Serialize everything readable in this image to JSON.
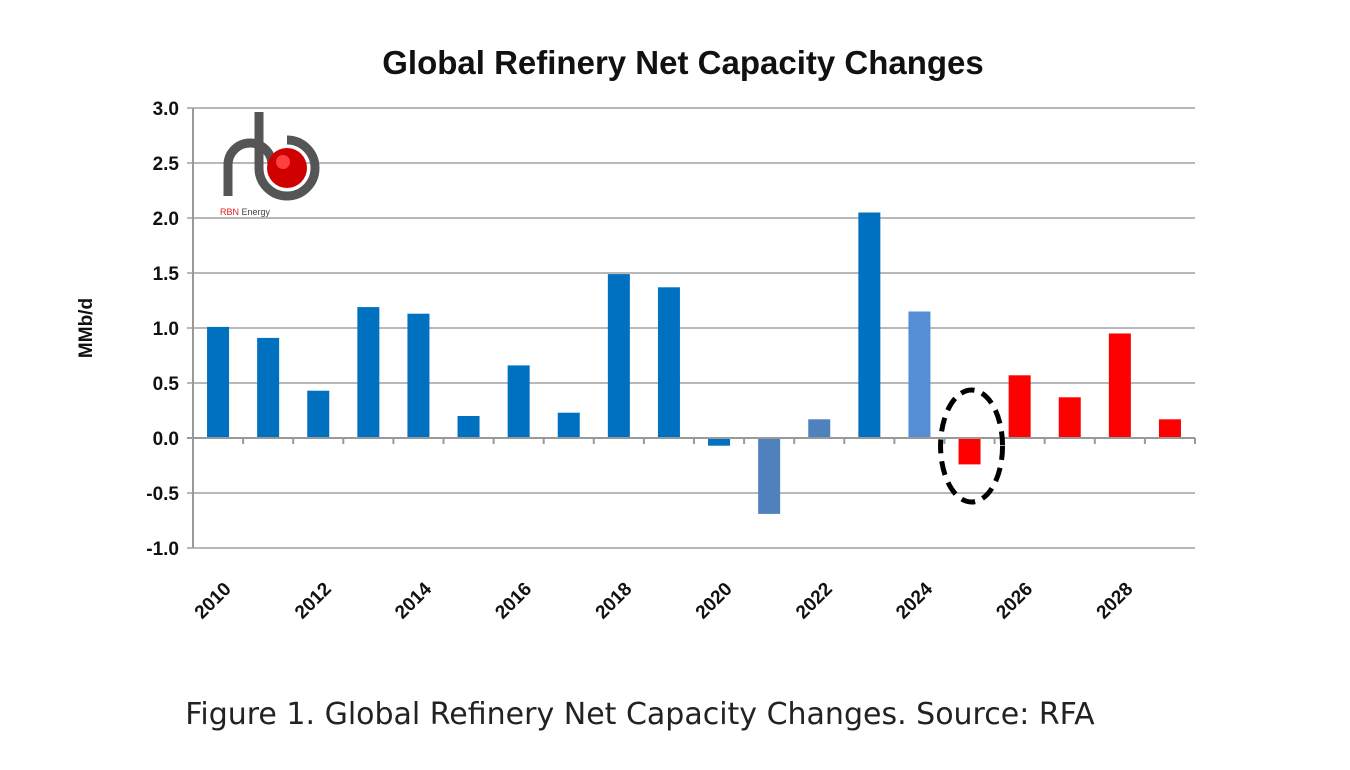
{
  "chart_data": {
    "type": "bar",
    "title": "Global Refinery Net Capacity Changes",
    "xlabel": "",
    "ylabel": "MMb/d",
    "ylim": [
      -1.0,
      3.0
    ],
    "yticks": [
      "3.0",
      "2.5",
      "2.0",
      "1.5",
      "1.0",
      "0.5",
      "0.0",
      "-0.5",
      "-1.0"
    ],
    "ytick_values": [
      3.0,
      2.5,
      2.0,
      1.5,
      1.0,
      0.5,
      0.0,
      -0.5,
      -1.0
    ],
    "grid": true,
    "categories": [
      "2010",
      "2011",
      "2012",
      "2013",
      "2014",
      "2015",
      "2016",
      "2017",
      "2018",
      "2019",
      "2020",
      "2021",
      "2022",
      "2023",
      "2024",
      "2025",
      "2026",
      "2027",
      "2028",
      "2029"
    ],
    "xtick_labels": [
      "2010",
      "2012",
      "2014",
      "2016",
      "2018",
      "2020",
      "2022",
      "2024",
      "2026",
      "2028"
    ],
    "values": [
      1.01,
      0.91,
      0.43,
      1.19,
      1.13,
      0.2,
      0.66,
      0.23,
      1.49,
      1.37,
      -0.07,
      -0.69,
      0.17,
      2.05,
      1.15,
      -0.24,
      0.57,
      0.37,
      0.95,
      0.17
    ],
    "bar_colors": [
      "#0070C0",
      "#0070C0",
      "#0070C0",
      "#0070C0",
      "#0070C0",
      "#0070C0",
      "#0070C0",
      "#0070C0",
      "#0070C0",
      "#0070C0",
      "#0070C0",
      "#4F81BD",
      "#4F81BD",
      "#0070C0",
      "#558ED5",
      "#FF0000",
      "#FF0000",
      "#FF0000",
      "#FF0000",
      "#FF0000"
    ],
    "annotations": [
      {
        "type": "dashed-ellipse",
        "category": "2025"
      }
    ],
    "logo_text": "RBN Energy LLC"
  },
  "caption": "Figure 1. Global Refinery Net Capacity Changes. Source: RFA"
}
